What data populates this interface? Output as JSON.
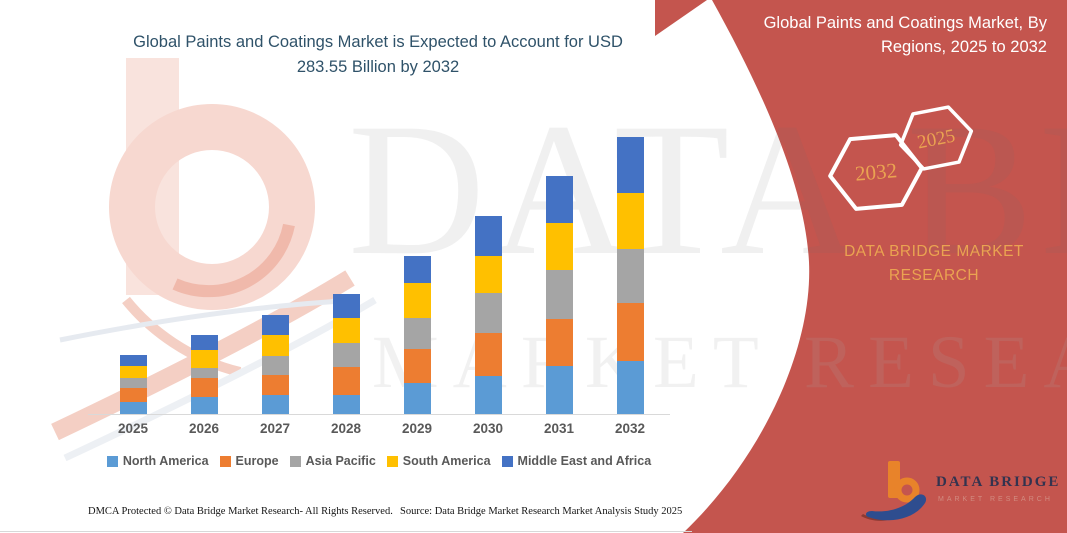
{
  "title": {
    "text": "Global Paints and Coatings Market is Expected to Account for USD 283.55 Billion by 2032",
    "color": "#2f5269"
  },
  "banner": {
    "color": "#c4554e",
    "title": "Global Paints and Coatings Market, By Regions, 2025 to 2032",
    "hexagons": [
      {
        "label": "2032"
      },
      {
        "label": "2025"
      }
    ],
    "brand_caption": "DATA BRIDGE MARKET RESEARCH",
    "accent_text_color": "#eaa351"
  },
  "watermark": {
    "line1": "DATA BRIDGE",
    "line2": "MARKET RESEARCH"
  },
  "chart_data": {
    "type": "bar",
    "stacked": true,
    "title": "Global Paints and Coatings Market, By Regions, 2025 to 2032",
    "unit": "USD Billion",
    "categories": [
      "2025",
      "2026",
      "2027",
      "2028",
      "2029",
      "2030",
      "2031",
      "2032"
    ],
    "series": [
      {
        "name": "North America",
        "color": "#5B9BD5",
        "values": [
          12.0,
          17.5,
          19.5,
          20.0,
          32.0,
          39.0,
          49.5,
          54.5
        ]
      },
      {
        "name": "Europe",
        "color": "#ED7D31",
        "values": [
          15.0,
          19.0,
          21.0,
          28.5,
          35.0,
          44.0,
          48.0,
          59.3
        ]
      },
      {
        "name": "Asia Pacific",
        "color": "#A5A5A5",
        "values": [
          10.0,
          11.0,
          18.5,
          24.0,
          31.0,
          41.0,
          50.0,
          55.2
        ]
      },
      {
        "name": "South America",
        "color": "#FFC000",
        "values": [
          12.0,
          18.0,
          22.0,
          25.5,
          36.0,
          38.0,
          48.5,
          57.2
        ]
      },
      {
        "name": "Middle East and Africa",
        "color": "#4472C4",
        "values": [
          11.5,
          15.5,
          20.5,
          25.0,
          28.0,
          41.0,
          48.0,
          57.35
        ]
      }
    ],
    "totals": [
      60.5,
      81.0,
      101.5,
      123.0,
      162.0,
      203.0,
      244.0,
      283.55
    ],
    "highlight_total": {
      "year": "2032",
      "value": 283.55,
      "unit": "USD Billion"
    },
    "legend_position": "bottom",
    "grid": false,
    "y_axis_labels_visible": false
  },
  "logo": {
    "wordmark": "DATA BRIDGE",
    "subtext": "MARKET RESEARCH"
  },
  "footer": {
    "left": "DMCA Protected © Data Bridge Market Research- All Rights Reserved.",
    "right": "Source: Data Bridge Market Research Market Analysis Study 2025"
  }
}
